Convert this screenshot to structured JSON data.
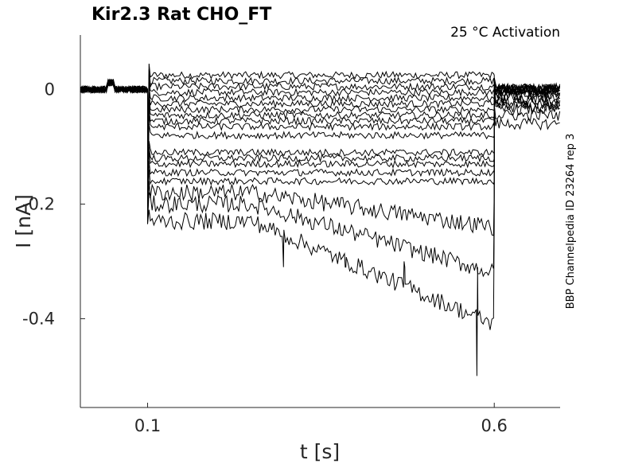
{
  "chart_data": {
    "type": "line",
    "title": "Kir2.3  Rat  CHO_FT",
    "annotation": "25 °C  Activation",
    "side_label": "BBP Channelpedia ID 23264 rep 3",
    "xlabel": "t [s]",
    "ylabel": "I [nA]",
    "xlim": [
      0.003,
      0.695
    ],
    "ylim": [
      -0.555,
      0.095
    ],
    "x_ticks": [
      0.1,
      0.6
    ],
    "x_tick_labels": [
      "0.1",
      "0.6"
    ],
    "y_ticks": [
      0,
      -0.2,
      -0.4
    ],
    "y_tick_labels": [
      "0",
      "-0.2",
      "-0.4"
    ],
    "grid": false,
    "step_on": 0.1,
    "step_off": 0.6,
    "onset_spike": -0.24,
    "trace_levels": [
      0.025,
      0.015,
      0.005,
      -0.005,
      -0.015,
      -0.025,
      -0.035,
      -0.045,
      -0.055,
      -0.065,
      -0.08,
      -0.11,
      -0.12,
      -0.13,
      -0.145,
      -0.16,
      -0.18,
      -0.2,
      -0.23
    ],
    "tail_levels": [
      0.0,
      0.0,
      0.0,
      -0.005,
      -0.01,
      -0.015,
      -0.02,
      -0.025,
      -0.03,
      -0.035,
      -0.045,
      -0.06,
      0.0,
      0.0,
      0.0,
      0.0,
      0.0,
      0.0,
      0.0
    ],
    "events": [
      {
        "t": 0.575,
        "i": -0.5
      },
      {
        "t": 0.385,
        "i": -0.31
      },
      {
        "t": 0.295,
        "i": -0.27
      },
      {
        "t": 0.47,
        "i": -0.3
      }
    ]
  }
}
